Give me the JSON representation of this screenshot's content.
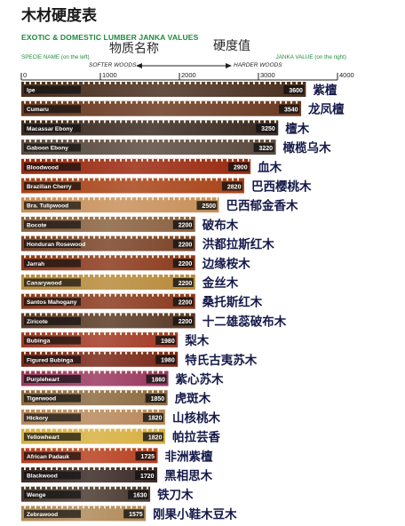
{
  "header": {
    "title_cn": "木材硬度表",
    "title_en": "EXOTIC & DOMESTIC LUMBER JANKA VALUES",
    "overlay_name_cn": "物质名称",
    "overlay_hardness_cn": "硬度值",
    "sub_left": "SPECIE NAME (on the left)",
    "sub_right": "JANKA VALUE (on the right)",
    "softer": "SOFTER WOODS",
    "harder": "HARDER WOODS"
  },
  "chart_data": {
    "type": "bar",
    "orientation": "horizontal",
    "title": "EXOTIC & DOMESTIC LUMBER JANKA VALUES",
    "xlabel": "JANKA VALUE (on the right)",
    "ylabel": "SPECIE NAME (on the left)",
    "xlim": [
      0,
      4000
    ],
    "xticks": [
      0,
      1000,
      2000,
      3000,
      4000
    ],
    "grid": false,
    "categories": [
      "Ipe",
      "Cumaru",
      "Macassar Ebony",
      "Gaboon Ebony",
      "Bloodwood",
      "Brazilian Cherry",
      "Bra. Tulipwood",
      "Bocote",
      "Honduran Rosewood",
      "Jarrah",
      "Canarywood",
      "Santos Mahogany",
      "Ziricote",
      "Bubinga",
      "Figured Bubinga",
      "Purpleheart",
      "Tigerwood",
      "Hickory",
      "Yellowheart",
      "African Padauk",
      "Blackwood",
      "Wenge",
      "Zebrawood"
    ],
    "labels_cn": [
      "紫檀",
      "龙凤檀",
      "檀木",
      "橄榄乌木",
      "血木",
      "巴西樱桃木",
      "巴西郁金香木",
      "破布木",
      "洪都拉斯红木",
      "边缘桉木",
      "金丝木",
      "桑托斯红木",
      "十二雄蕊破布木",
      "梨木",
      "特氏古夷苏木",
      "紫心苏木",
      "虎斑木",
      "山核桃木",
      "帕拉芸香",
      "非洲紫檀",
      "黑相思木",
      "铁刀木",
      "刚果小鞋木豆木"
    ],
    "values": [
      3600,
      3540,
      3250,
      3220,
      2900,
      2820,
      2500,
      2200,
      2200,
      2200,
      2200,
      2200,
      2200,
      1980,
      1980,
      1860,
      1850,
      1820,
      1820,
      1725,
      1720,
      1630,
      1575
    ],
    "colors": [
      "#4a3020",
      "#6b3a22",
      "#3a2a22",
      "#5a4a40",
      "#9a2a10",
      "#a84418",
      "#c8905a",
      "#8a6240",
      "#7a4428",
      "#8c3a1c",
      "#b88a3a",
      "#8a3a1e",
      "#5a3a26",
      "#a23a24",
      "#7a2818",
      "#9a3860",
      "#8c6a40",
      "#b8885a",
      "#d8b040",
      "#b84020",
      "#3a2a26",
      "#4a3a30",
      "#b08a58"
    ]
  }
}
